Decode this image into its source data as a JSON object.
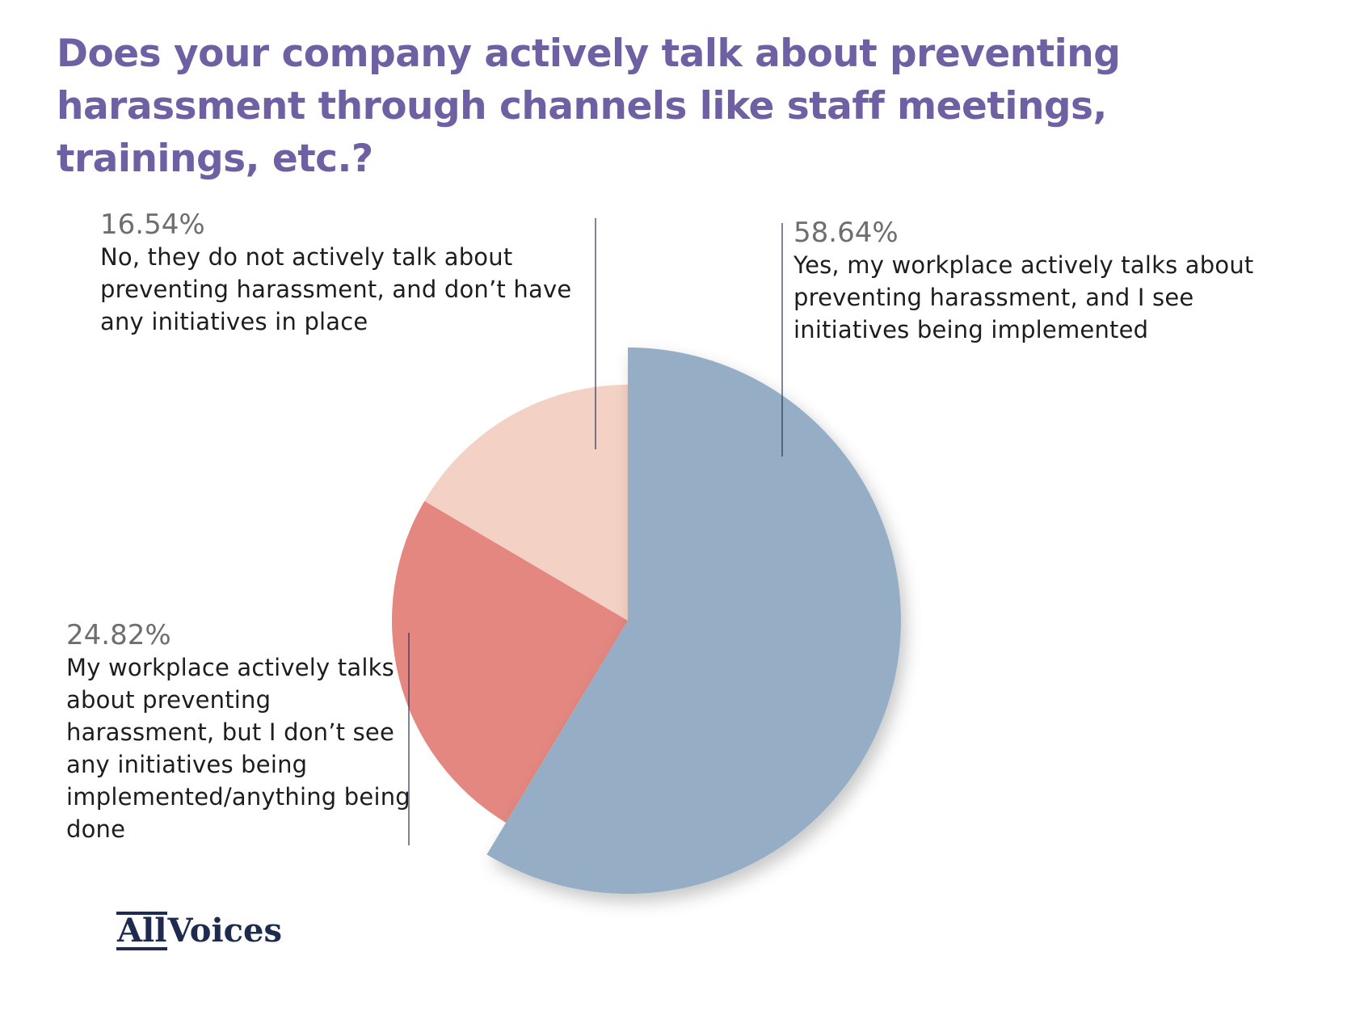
{
  "chart_data": {
    "type": "pie",
    "title": "Does your company actively talk about preventing harassment through channels like staff meetings, trainings, etc.?",
    "slices": [
      {
        "label": "Yes, my workplace actively talks about preventing harassment, and I see initiatives being implemented",
        "value": 58.64,
        "value_label": "58.64%",
        "color": "#95aec5",
        "exploded": true
      },
      {
        "label": "My workplace actively talks about preventing harassment, but I don’t see any initiatives being implemented/anything being done",
        "value": 24.82,
        "value_label": "24.82%",
        "color": "#e48781",
        "exploded": false
      },
      {
        "label": "No, they do not actively talk about preventing harassment, and don’t have any initiatives in place",
        "value": 16.54,
        "value_label": "16.54%",
        "color": "#f4d1c5",
        "exploded": false
      }
    ],
    "start_angle": "12 o'clock",
    "direction": "clockwise",
    "legend": "none"
  },
  "logo": {
    "part1": "All",
    "part2": "Voices"
  }
}
